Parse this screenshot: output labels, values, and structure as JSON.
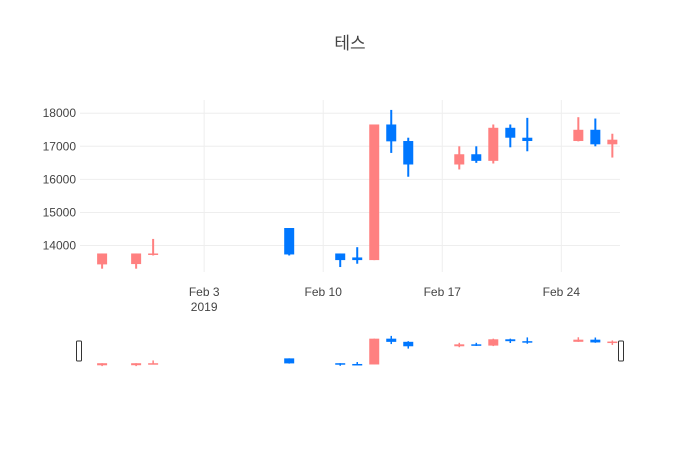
{
  "chart_data": {
    "type": "candlestick",
    "title": "테스",
    "x_type": "date",
    "xlim": [
      "2019-01-27",
      "2019-02-27"
    ],
    "ylim": [
      13200,
      18400
    ],
    "grid": true,
    "rangeslider": true,
    "x_ticks": [
      {
        "date": "2019-02-03",
        "label": "Feb 3",
        "sublabel": "2019"
      },
      {
        "date": "2019-02-10",
        "label": "Feb 10",
        "sublabel": ""
      },
      {
        "date": "2019-02-17",
        "label": "Feb 17",
        "sublabel": ""
      },
      {
        "date": "2019-02-24",
        "label": "Feb 24",
        "sublabel": ""
      }
    ],
    "y_ticks": [
      14000,
      15000,
      16000,
      17000,
      18000
    ],
    "y_tick_labels": [
      "14000",
      "15000",
      "16000",
      "17000",
      "18000"
    ],
    "increasing_color": "#0077ff",
    "decreasing_color": "#ff8080",
    "candles": [
      {
        "date": "2019-01-28",
        "open": 13760,
        "high": 13760,
        "low": 13300,
        "close": 13430
      },
      {
        "date": "2019-01-30",
        "open": 13760,
        "high": 13760,
        "low": 13300,
        "close": 13440
      },
      {
        "date": "2019-01-31",
        "open": 13760,
        "high": 14200,
        "low": 13700,
        "close": 13730
      },
      {
        "date": "2019-02-08",
        "open": 13730,
        "high": 14530,
        "low": 13700,
        "close": 14530
      },
      {
        "date": "2019-02-11",
        "open": 13560,
        "high": 13760,
        "low": 13350,
        "close": 13760
      },
      {
        "date": "2019-02-12",
        "open": 13560,
        "high": 13950,
        "low": 13450,
        "close": 13640
      },
      {
        "date": "2019-02-13",
        "open": 17660,
        "high": 17660,
        "low": 13560,
        "close": 13560
      },
      {
        "date": "2019-02-14",
        "open": 17150,
        "high": 18100,
        "low": 16800,
        "close": 17660
      },
      {
        "date": "2019-02-15",
        "open": 16450,
        "high": 17260,
        "low": 16080,
        "close": 17160
      },
      {
        "date": "2019-02-18",
        "open": 16760,
        "high": 17000,
        "low": 16300,
        "close": 16450
      },
      {
        "date": "2019-02-19",
        "open": 16560,
        "high": 17000,
        "low": 16500,
        "close": 16760
      },
      {
        "date": "2019-02-20",
        "open": 17560,
        "high": 17660,
        "low": 16480,
        "close": 16560
      },
      {
        "date": "2019-02-21",
        "open": 17260,
        "high": 17660,
        "low": 16970,
        "close": 17560
      },
      {
        "date": "2019-02-22",
        "open": 17160,
        "high": 17860,
        "low": 16850,
        "close": 17260
      },
      {
        "date": "2019-02-25",
        "open": 17500,
        "high": 17880,
        "low": 17150,
        "close": 17160
      },
      {
        "date": "2019-02-26",
        "open": 17060,
        "high": 17840,
        "low": 17000,
        "close": 17500
      },
      {
        "date": "2019-02-27",
        "open": 17200,
        "high": 17380,
        "low": 16660,
        "close": 17060
      }
    ]
  }
}
